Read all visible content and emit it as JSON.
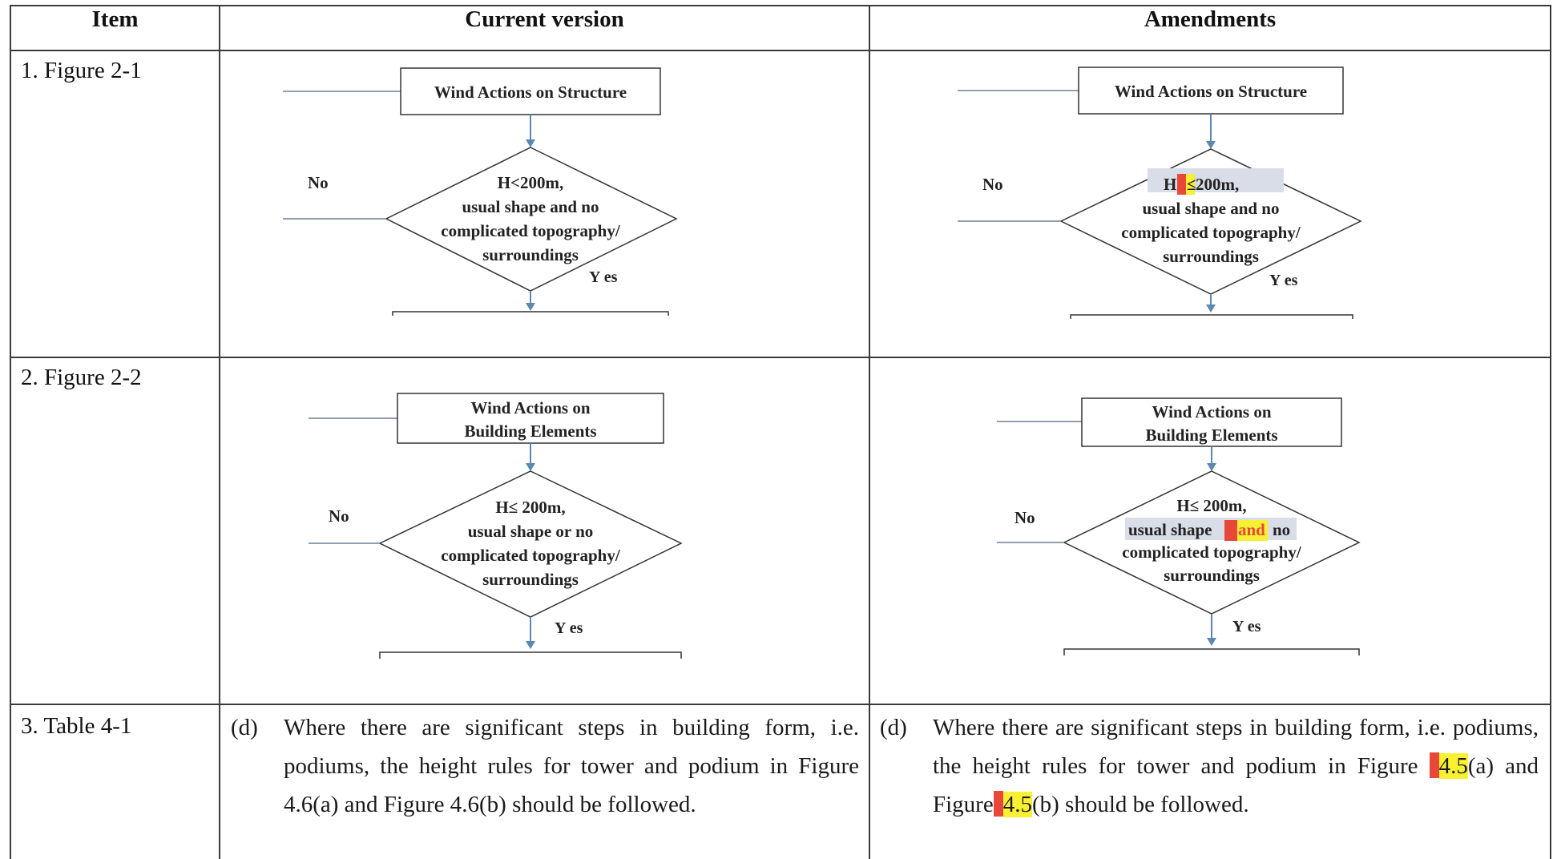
{
  "headers": {
    "item": "Item",
    "current": "Current version",
    "amendments": "Amendments"
  },
  "rows": [
    {
      "label": "1.  Figure 2-1",
      "current": {
        "box_line1": "Wind Actions on Structure",
        "box_line2": "",
        "no": "No",
        "yes": "Y es",
        "d1": "H<200m,",
        "d2": "usual shape and no",
        "d3": "complicated topography/",
        "d4": "surroundings"
      },
      "amend": {
        "box_line1": "Wind Actions on Structure",
        "box_line2": "",
        "no": "No",
        "yes": "Y es",
        "d1_pre": "H",
        "d1_hl": "≤",
        "d1_post": "200m,",
        "d2": "usual shape and no",
        "d3": "complicated topography/",
        "d4": "surroundings"
      }
    },
    {
      "label": "2.  Figure 2-2",
      "current": {
        "box_line1": "Wind Actions on",
        "box_line2": "Building Elements",
        "no": "No",
        "yes": "Y es",
        "d1": "H≤ 200m,",
        "d2": "usual shape or no",
        "d3": "complicated topography/",
        "d4": "surroundings"
      },
      "amend": {
        "box_line1": "Wind Actions on",
        "box_line2": "Building Elements",
        "no": "No",
        "yes": "Y es",
        "d1": "H≤ 200m,",
        "d2_pre": "usual shape",
        "d2_hl": "and",
        "d2_post": "no",
        "d3": "complicated topography/",
        "d4": "surroundings"
      }
    },
    {
      "label": "3.  Table 4-1",
      "current": {
        "letter": "(d)",
        "text": "Where there are significant steps in building form, i.e. podiums, the height rules for tower and podium in Figure 4.6(a) and Figure 4.6(b) should be followed."
      },
      "amend": {
        "letter": "(d)",
        "part1": "Where there are significant steps in building form, i.e. podiums, the height rules for tower and podium in Figure ",
        "hl1": "4.5",
        "part2": "(a) and Figure",
        "hl2": "4.5",
        "part3": "(b) should be followed."
      }
    }
  ],
  "colors": {
    "rule": "#3a3a3a",
    "arrow": "#5b87b0",
    "highlight": "#f7f033",
    "marker": "#e8483a"
  }
}
